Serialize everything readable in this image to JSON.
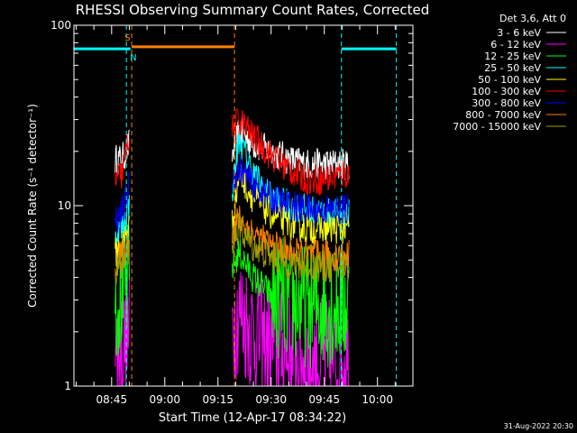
{
  "chart_data": {
    "type": "line",
    "title": "RHESSI Observing Summary Count Rates, Corrected",
    "xlabel": "Start Time (12-Apr-17 08:34:22)",
    "ylabel": "Corrected Count Rate (s⁻¹ detector⁻¹)",
    "xlim": [
      "08:34:22",
      "10:10"
    ],
    "ylim": [
      1,
      100
    ],
    "yscale": "log",
    "xticks": [
      "08:45",
      "09:00",
      "09:15",
      "09:30",
      "09:45",
      "10:00"
    ],
    "yticks": [
      "1",
      "10",
      "100"
    ],
    "grid": false,
    "legend_position": "top-right",
    "legend_header": "Det 3,6, Att 0",
    "footer": "31-Aug-2022 20:30",
    "flags": [
      {
        "label": "S",
        "color": "#ff8000",
        "level": 76,
        "start": "08:50:40",
        "end": "09:19:40"
      },
      {
        "label": "N",
        "color": "#00ffff",
        "level": 74,
        "start": "08:34:22",
        "end": "08:50:20"
      },
      {
        "label": "N",
        "color": "#00ffff",
        "level": 74,
        "start": "09:49:50",
        "end": "10:05:20"
      }
    ],
    "markers": [
      {
        "time": "08:49:10",
        "color": "#00ffff"
      },
      {
        "time": "08:50:40",
        "color": "#ff8000"
      },
      {
        "time": "09:19:40",
        "color": "#ff8000"
      },
      {
        "time": "09:49:50",
        "color": "#00ffff"
      },
      {
        "time": "10:05:20",
        "color": "#00ffff"
      }
    ],
    "x": [
      "08:46",
      "08:48",
      "08:50",
      "09:19",
      "09:21",
      "09:25",
      "09:30",
      "09:35",
      "09:40",
      "09:45",
      "09:50",
      "09:52"
    ],
    "series": [
      {
        "name": "3 - 6 keV",
        "color": "#ffffff",
        "values": [
          18,
          18,
          22,
          19,
          26,
          22,
          20,
          18,
          17,
          17,
          17,
          17
        ]
      },
      {
        "name": "6 - 12 keV",
        "color": "#ff00ff",
        "values": [
          1.6,
          1.6,
          2.0,
          2.2,
          2.6,
          2.0,
          1.6,
          1.5,
          1.4,
          1.4,
          1.4,
          1.4
        ]
      },
      {
        "name": "12 - 25 keV",
        "color": "#00ff00",
        "values": [
          3.0,
          3.2,
          3.8,
          4.5,
          5.5,
          4.0,
          3.2,
          3.0,
          2.8,
          2.8,
          2.8,
          2.8
        ]
      },
      {
        "name": "25 - 50 keV",
        "color": "#00ffff",
        "values": [
          7.0,
          7.5,
          10,
          12,
          24,
          15,
          11,
          10,
          9.5,
          9.0,
          9.0,
          9.0
        ]
      },
      {
        "name": "50 - 100 keV",
        "color": "#ffff00",
        "values": [
          5.5,
          6.0,
          8.0,
          8.0,
          15,
          11,
          9.0,
          8.0,
          7.5,
          7.5,
          7.5,
          7.5
        ]
      },
      {
        "name": "100 - 300 keV",
        "color": "#ff0000",
        "values": [
          14,
          15,
          25,
          26,
          30,
          24,
          19,
          16,
          14,
          14,
          15,
          15
        ]
      },
      {
        "name": "300 - 800 keV",
        "color": "#0000ff",
        "values": [
          8.5,
          9.0,
          13,
          14,
          16,
          13,
          11,
          10,
          9.5,
          9.5,
          9.5,
          9.5
        ]
      },
      {
        "name": "800 - 7000 keV",
        "color": "#ff8000",
        "values": [
          5.0,
          5.2,
          6.5,
          7.0,
          8.5,
          7.0,
          6.0,
          5.5,
          5.3,
          5.3,
          5.3,
          5.3
        ]
      },
      {
        "name": "7000 - 15000 keV",
        "color": "#a0a000",
        "values": [
          4.5,
          4.7,
          5.5,
          6.5,
          7.5,
          6.0,
          5.2,
          4.8,
          4.6,
          4.6,
          4.6,
          4.6
        ]
      }
    ]
  }
}
